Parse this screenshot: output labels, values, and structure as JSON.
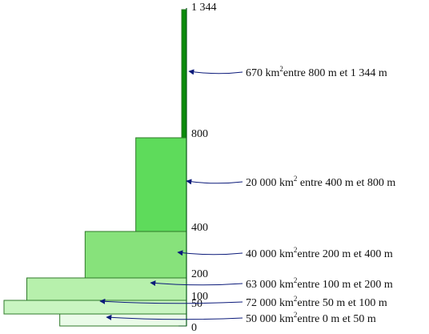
{
  "chart_data": {
    "type": "bar",
    "orientation": "horizontal",
    "bar_colors": [
      "#eafbe8",
      "#c9f5c1",
      "#b7f0ac",
      "#87e27b",
      "#5edb5b",
      "#0a8a0a"
    ],
    "axis_color": "#0b5a1a",
    "arrow_color": "#0b1a7a",
    "ylim": [
      0,
      1344
    ],
    "y_ticks": [
      {
        "value": 0,
        "label": "0"
      },
      {
        "value": 50,
        "label": "50"
      },
      {
        "value": 100,
        "label": "100"
      },
      {
        "value": 200,
        "label": "200"
      },
      {
        "value": 400,
        "label": "400"
      },
      {
        "value": 800,
        "label": "800"
      },
      {
        "value": 1344,
        "label": "1 344"
      }
    ],
    "bands": [
      {
        "from": 0,
        "to": 50,
        "area_km2": 50000,
        "area_label": "50 000 km",
        "unit_sup": "2",
        "range_label": "entre 0 m et 50 m"
      },
      {
        "from": 50,
        "to": 100,
        "area_km2": 72000,
        "area_label": "72 000 km",
        "unit_sup": "2",
        "range_label": "entre 50 m et 100 m"
      },
      {
        "from": 100,
        "to": 200,
        "area_km2": 63000,
        "area_label": "63 000 km",
        "unit_sup": "2",
        "range_label": "entre 100 m et 200 m"
      },
      {
        "from": 200,
        "to": 400,
        "area_km2": 40000,
        "area_label": "40 000 km",
        "unit_sup": "2",
        "range_label": "entre 200 m et 400 m"
      },
      {
        "from": 400,
        "to": 800,
        "area_km2": 20000,
        "area_label": "20 000 km",
        "unit_sup": "2",
        "range_label": " entre 400 m et 800 m"
      },
      {
        "from": 800,
        "to": 1344,
        "area_km2": 670,
        "area_label": "670 km",
        "unit_sup": "2",
        "range_label": "entre 800 m et 1 344 m"
      }
    ]
  }
}
